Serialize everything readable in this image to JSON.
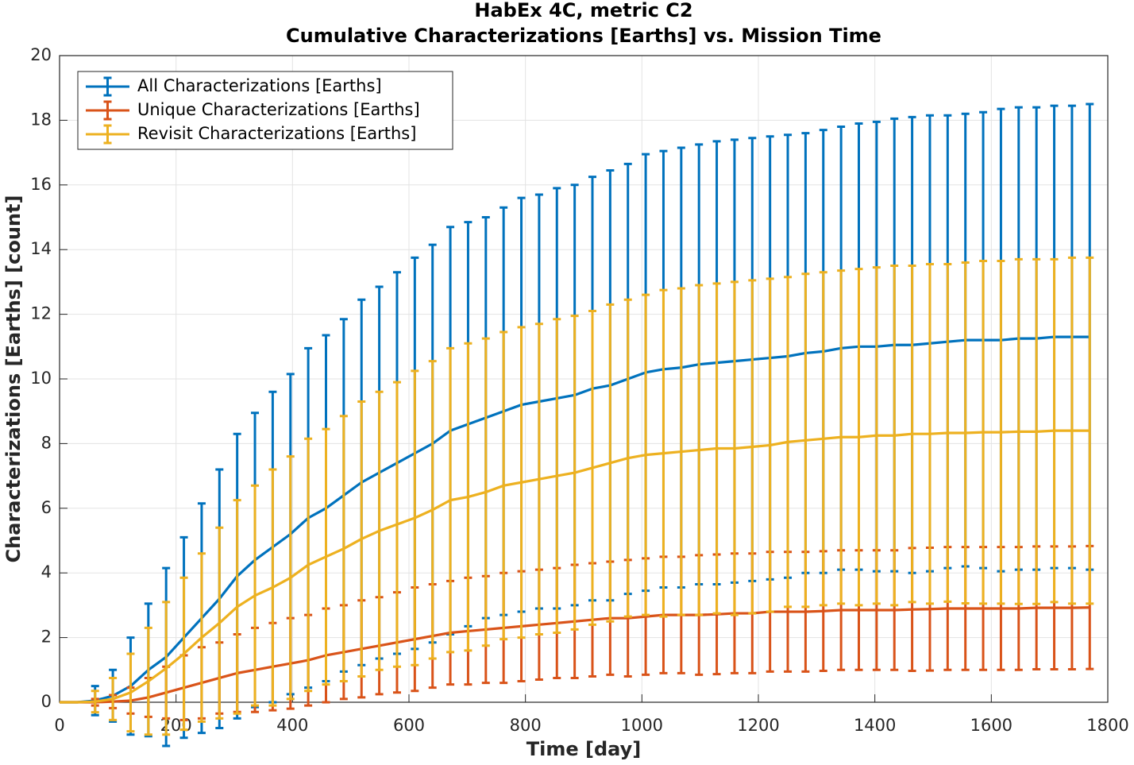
{
  "chart_data": {
    "type": "errorbar",
    "title": "HabEx 4C, metric C2",
    "subtitle": "Cumulative Characterizations [Earths] vs. Mission Time",
    "xlabel": "Time [day]",
    "ylabel": "Characterizations [Earths] [count]",
    "x": [
      0,
      30.5,
      61,
      91.5,
      122,
      152.5,
      183,
      213.5,
      244,
      274.5,
      305,
      335.5,
      366,
      396.5,
      427,
      457.5,
      488,
      518.5,
      549,
      579.5,
      610,
      640.5,
      671,
      701.5,
      732,
      762.5,
      793,
      823.5,
      854,
      884.5,
      915,
      945.5,
      976,
      1006.5,
      1037,
      1067.5,
      1098,
      1128.5,
      1159,
      1189.5,
      1220,
      1250.5,
      1281,
      1311.5,
      1342,
      1372.5,
      1403,
      1433.5,
      1464,
      1494.5,
      1525,
      1555.5,
      1586,
      1616.5,
      1647,
      1677.5,
      1708,
      1738.5,
      1769
    ],
    "series": [
      {
        "name": "All Characterizations [Earths]",
        "color": "#0072bd",
        "values": [
          0,
          0,
          0.05,
          0.2,
          0.5,
          1.0,
          1.4,
          2.0,
          2.6,
          3.2,
          3.9,
          4.4,
          4.8,
          5.2,
          5.7,
          6.0,
          6.4,
          6.8,
          7.1,
          7.4,
          7.7,
          8.0,
          8.4,
          8.6,
          8.8,
          9.0,
          9.2,
          9.3,
          9.4,
          9.5,
          9.7,
          9.8,
          10.0,
          10.2,
          10.3,
          10.35,
          10.45,
          10.5,
          10.55,
          10.6,
          10.65,
          10.7,
          10.8,
          10.85,
          10.95,
          11.0,
          11.0,
          11.05,
          11.05,
          11.1,
          11.15,
          11.2,
          11.2,
          11.2,
          11.25,
          11.25,
          11.3,
          11.3,
          11.3
        ],
        "errors": [
          0,
          0,
          0.45,
          0.8,
          1.5,
          2.05,
          2.75,
          3.1,
          3.55,
          4.0,
          4.4,
          4.55,
          4.8,
          4.95,
          5.25,
          5.35,
          5.45,
          5.65,
          5.75,
          5.9,
          6.05,
          6.15,
          6.3,
          6.25,
          6.2,
          6.3,
          6.4,
          6.4,
          6.5,
          6.5,
          6.55,
          6.65,
          6.65,
          6.75,
          6.75,
          6.8,
          6.8,
          6.85,
          6.85,
          6.85,
          6.85,
          6.85,
          6.8,
          6.85,
          6.85,
          6.9,
          6.95,
          7.0,
          7.05,
          7.05,
          7.0,
          7.0,
          7.05,
          7.15,
          7.15,
          7.15,
          7.15,
          7.15,
          7.2
        ]
      },
      {
        "name": "Unique Characterizations [Earths]",
        "color": "#d95319",
        "values": [
          0,
          0,
          0,
          0.02,
          0.05,
          0.15,
          0.3,
          0.45,
          0.6,
          0.75,
          0.9,
          1.0,
          1.1,
          1.2,
          1.3,
          1.45,
          1.55,
          1.65,
          1.75,
          1.85,
          1.95,
          2.05,
          2.15,
          2.2,
          2.25,
          2.3,
          2.35,
          2.4,
          2.45,
          2.5,
          2.55,
          2.6,
          2.6,
          2.65,
          2.7,
          2.7,
          2.7,
          2.72,
          2.75,
          2.75,
          2.8,
          2.8,
          2.8,
          2.82,
          2.85,
          2.85,
          2.85,
          2.85,
          2.87,
          2.88,
          2.9,
          2.9,
          2.9,
          2.9,
          2.9,
          2.92,
          2.92,
          2.92,
          2.93
        ],
        "errors": [
          0,
          0,
          0.1,
          0.2,
          0.4,
          0.6,
          0.8,
          1.0,
          1.1,
          1.1,
          1.2,
          1.3,
          1.35,
          1.4,
          1.4,
          1.45,
          1.45,
          1.5,
          1.5,
          1.55,
          1.6,
          1.6,
          1.6,
          1.65,
          1.65,
          1.7,
          1.7,
          1.7,
          1.7,
          1.75,
          1.75,
          1.75,
          1.8,
          1.8,
          1.8,
          1.8,
          1.85,
          1.85,
          1.85,
          1.85,
          1.85,
          1.85,
          1.85,
          1.85,
          1.85,
          1.85,
          1.85,
          1.85,
          1.9,
          1.9,
          1.9,
          1.9,
          1.9,
          1.9,
          1.9,
          1.9,
          1.9,
          1.9,
          1.9
        ]
      },
      {
        "name": "Revisit Characterizations [Earths]",
        "color": "#edb120",
        "values": [
          0,
          0,
          0.02,
          0.1,
          0.3,
          0.65,
          1.05,
          1.5,
          2.0,
          2.45,
          2.95,
          3.3,
          3.55,
          3.85,
          4.25,
          4.5,
          4.75,
          5.05,
          5.3,
          5.5,
          5.7,
          5.95,
          6.25,
          6.35,
          6.5,
          6.7,
          6.8,
          6.9,
          7.0,
          7.1,
          7.25,
          7.4,
          7.55,
          7.65,
          7.7,
          7.75,
          7.8,
          7.85,
          7.85,
          7.9,
          7.95,
          8.05,
          8.1,
          8.15,
          8.2,
          8.2,
          8.25,
          8.25,
          8.3,
          8.3,
          8.33,
          8.33,
          8.35,
          8.35,
          8.37,
          8.37,
          8.4,
          8.4,
          8.4
        ],
        "errors": [
          0,
          0,
          0.33,
          0.65,
          1.2,
          1.65,
          2.05,
          2.35,
          2.6,
          2.95,
          3.3,
          3.4,
          3.65,
          3.75,
          3.9,
          3.95,
          4.1,
          4.25,
          4.3,
          4.4,
          4.55,
          4.6,
          4.7,
          4.75,
          4.75,
          4.75,
          4.8,
          4.8,
          4.85,
          4.85,
          4.85,
          4.9,
          4.9,
          4.95,
          5.05,
          5.05,
          5.1,
          5.1,
          5.15,
          5.15,
          5.15,
          5.1,
          5.15,
          5.15,
          5.15,
          5.2,
          5.2,
          5.25,
          5.2,
          5.25,
          5.22,
          5.27,
          5.3,
          5.3,
          5.33,
          5.33,
          5.3,
          5.35,
          5.35
        ]
      }
    ],
    "xlim": [
      0,
      1800
    ],
    "xticks": [
      0,
      200,
      400,
      600,
      800,
      1000,
      1200,
      1400,
      1600,
      1800
    ],
    "ylim": [
      0,
      20
    ],
    "yticks": [
      0,
      2,
      4,
      6,
      8,
      10,
      12,
      14,
      16,
      18,
      20
    ],
    "grid": true,
    "legend": "northwest"
  }
}
